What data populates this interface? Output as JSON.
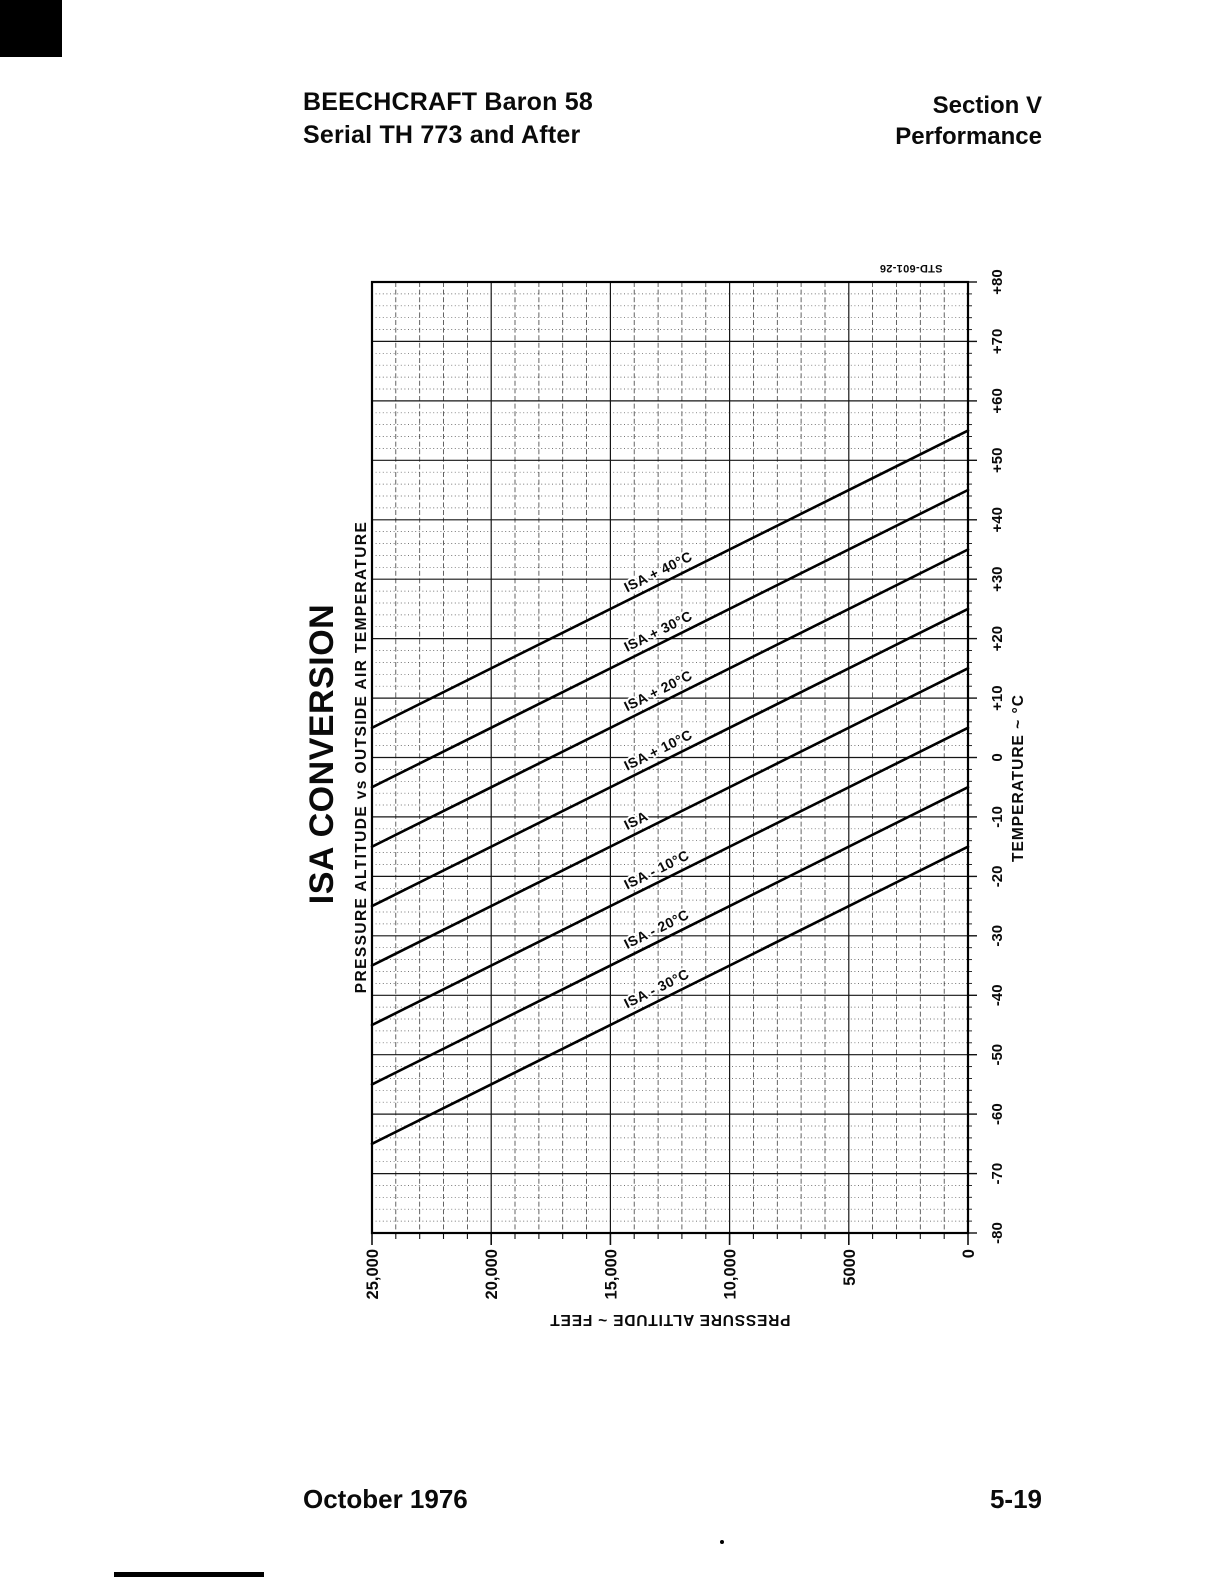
{
  "page": {
    "header": {
      "left_line1": "BEECHCRAFT Baron 58",
      "left_line2": "Serial TH 773 and After",
      "right_line1": "Section V",
      "right_line2": "Performance"
    },
    "footer": {
      "left": "October 1976",
      "right": "5-19"
    }
  },
  "chart": {
    "title": "ISA CONVERSION",
    "subtitle": "PRESSURE ALTITUDE vs OUTSIDE AIR TEMPERATURE",
    "reference_number": "STD-601-26",
    "temperature_axis_label": "TEMPERATURE ~ °C",
    "altitude_axis_label": "PRESSURE ALTITUDE ~ FEET"
  },
  "chart_data": {
    "type": "line",
    "title": "ISA CONVERSION",
    "subtitle": "PRESSURE ALTITUDE vs OUTSIDE AIR TEMPERATURE",
    "xlabel": "TEMPERATURE ~ °C",
    "ylabel": "PRESSURE ALTITUDE ~ FEET",
    "page_orientation": "chart printed rotated 90 degrees counter-clockwise on portrait page",
    "x_range": [
      -80,
      80
    ],
    "x_major_step": 10,
    "x_minor_step": 2,
    "y_range": [
      0,
      25000
    ],
    "y_major_step": 5000,
    "y_minor_step": 1000,
    "x_tick_labels_top_to_bottom": [
      "+80",
      "+70",
      "+60",
      "+50",
      "+40",
      "+30",
      "+20",
      "+10",
      "0",
      "-10",
      "-20",
      "-30",
      "-40",
      "-50",
      "-60",
      "-70",
      "-80"
    ],
    "y_tick_labels_left_to_right": [
      "25,000",
      "20,000",
      "15,000",
      "10,000",
      "5000",
      "0"
    ],
    "grid": "major solid lines every 10C and 5000 ft; dense dotted minor grid every 2C and 1000 ft",
    "legend_position": "labels along lines",
    "series": [
      {
        "name": "ISA + 40°C",
        "isa_deviation_c": 40,
        "points_temp_alt": [
          [
            55,
            0
          ],
          [
            5,
            25000
          ]
        ]
      },
      {
        "name": "ISA + 30°C",
        "isa_deviation_c": 30,
        "points_temp_alt": [
          [
            45,
            0
          ],
          [
            -5,
            25000
          ]
        ]
      },
      {
        "name": "ISA + 20°C",
        "isa_deviation_c": 20,
        "points_temp_alt": [
          [
            35,
            0
          ],
          [
            -15,
            25000
          ]
        ]
      },
      {
        "name": "ISA + 10°C",
        "isa_deviation_c": 10,
        "points_temp_alt": [
          [
            25,
            0
          ],
          [
            -25,
            25000
          ]
        ]
      },
      {
        "name": "ISA",
        "isa_deviation_c": 0,
        "points_temp_alt": [
          [
            15,
            0
          ],
          [
            -35,
            25000
          ]
        ]
      },
      {
        "name": "ISA - 10°C",
        "isa_deviation_c": -10,
        "points_temp_alt": [
          [
            5,
            0
          ],
          [
            -45,
            25000
          ]
        ]
      },
      {
        "name": "ISA - 20°C",
        "isa_deviation_c": -20,
        "points_temp_alt": [
          [
            -5,
            0
          ],
          [
            -55,
            25000
          ]
        ]
      },
      {
        "name": "ISA - 30°C",
        "isa_deviation_c": -30,
        "points_temp_alt": [
          [
            -15,
            0
          ],
          [
            -65,
            25000
          ]
        ]
      }
    ]
  }
}
